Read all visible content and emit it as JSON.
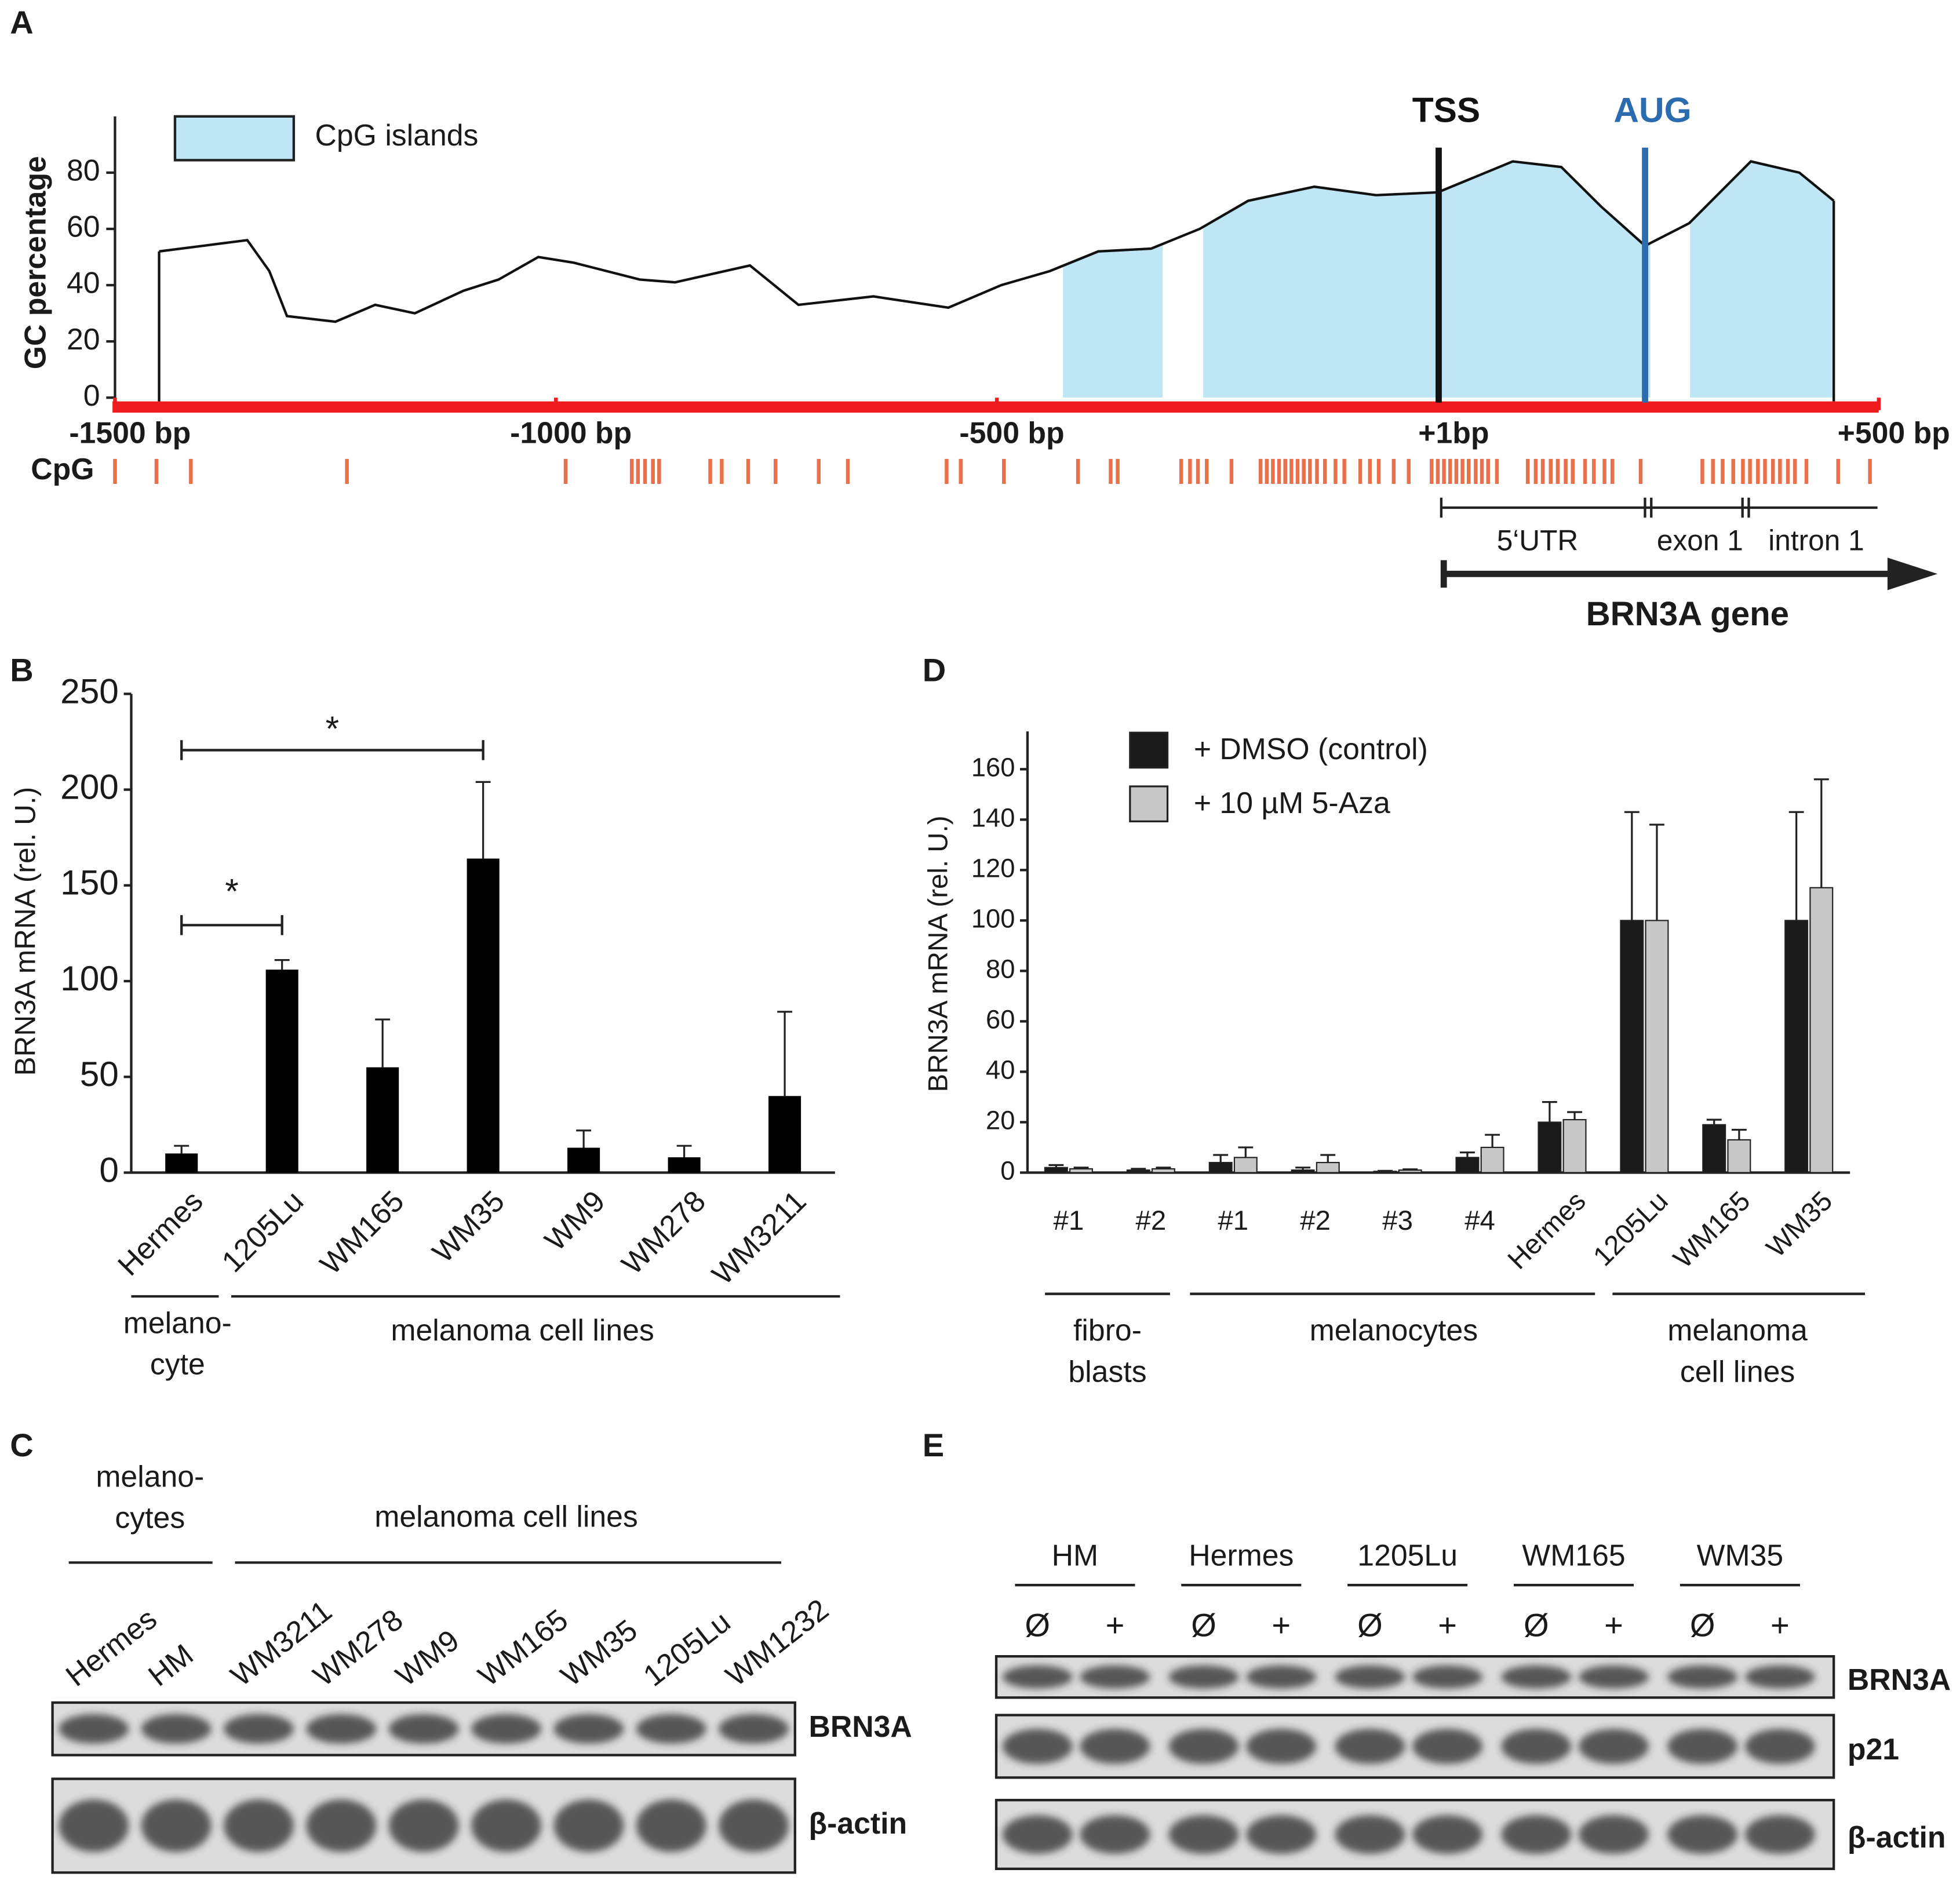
{
  "panel_a": {
    "label": "A",
    "type": "line",
    "ylabel": "GC percentage",
    "legend": "CpG islands",
    "ylim": [
      0,
      100
    ],
    "yticks": [
      0,
      20,
      40,
      60,
      80
    ],
    "xlim": [
      -1500,
      500
    ],
    "xticks": [
      {
        "value": -1500,
        "label": "-1500 bp"
      },
      {
        "value": -1000,
        "label": "-1000 bp"
      },
      {
        "value": -500,
        "label": "-500 bp"
      },
      {
        "value": 1,
        "label": "+1bp"
      },
      {
        "value": 500,
        "label": "+500 bp"
      }
    ],
    "x": [
      -1450,
      -1400,
      -1350,
      -1325,
      -1305,
      -1250,
      -1205,
      -1160,
      -1105,
      -1065,
      -1020,
      -980,
      -905,
      -865,
      -780,
      -725,
      -640,
      -555,
      -495,
      -440,
      -385,
      -325,
      -270,
      -215,
      -140,
      -70,
      0,
      85,
      140,
      185,
      235,
      285,
      355,
      410,
      449
    ],
    "values": [
      52,
      54,
      56,
      45,
      29,
      27,
      33,
      30,
      38,
      42,
      50,
      48,
      42,
      41,
      47,
      33,
      36,
      32,
      40,
      45,
      52,
      53,
      60,
      70,
      75,
      72,
      73,
      84,
      82,
      68,
      54,
      62,
      84,
      80,
      70
    ],
    "cpg_islands": [
      [
        -425,
        -312
      ],
      [
        -266,
        241
      ],
      [
        286,
        449
      ]
    ],
    "markers": [
      {
        "label": "TSS",
        "bp": 1,
        "color": "#111111"
      },
      {
        "label": "AUG",
        "bp": 235,
        "color": "#2b6cb0"
      }
    ],
    "cpg_label": "CpG",
    "cpg_sites": [
      -1500,
      -1453,
      -1414,
      -1237,
      -989,
      -914,
      -907,
      -899,
      -890,
      -883,
      -825,
      -812,
      -782,
      -751,
      -702,
      -669,
      -557,
      -541,
      -492,
      -408,
      -371,
      -363,
      -291,
      -281,
      -272,
      -262,
      -234,
      -201,
      -194,
      -187,
      -180,
      -173,
      -166,
      -159,
      -152,
      -145,
      -137,
      -128,
      -116,
      -106,
      -88,
      -77,
      -67,
      -50,
      -33,
      -7,
      0,
      7,
      14,
      21,
      28,
      35,
      43,
      50,
      57,
      67,
      102,
      111,
      119,
      128,
      136,
      145,
      153,
      167,
      177,
      189,
      198,
      230,
      300,
      312,
      323,
      335,
      346,
      354,
      363,
      371,
      380,
      388,
      397,
      405,
      418,
      454,
      490
    ],
    "regions": [
      "5‘UTR",
      "exon 1",
      "intron 1"
    ],
    "gene": "BRN3A gene"
  },
  "panel_b": {
    "label": "B",
    "type": "bar",
    "ylabel": "BRN3A mRNA (rel. U.)",
    "categories": [
      "Hermes",
      "1205Lu",
      "WM165",
      "WM35",
      "WM9",
      "WM278",
      "WM3211"
    ],
    "values": [
      10,
      106,
      55,
      164,
      13,
      8,
      40
    ],
    "errors": [
      4,
      5,
      25,
      40,
      9,
      6,
      44
    ],
    "color": "#000000",
    "ylim": [
      0,
      250
    ],
    "yticks": [
      0,
      50,
      100,
      150,
      200,
      250
    ],
    "groups": [
      [
        "melano-",
        "cyte"
      ],
      [
        "melanoma cell lines"
      ]
    ],
    "significance": [
      {
        "between": [
          "Hermes",
          "WM35"
        ],
        "label": "*"
      },
      {
        "between": [
          "Hermes",
          "1205Lu"
        ],
        "label": "*"
      }
    ]
  },
  "panel_c": {
    "label": "C",
    "groups": [
      [
        "melano-",
        "cytes"
      ],
      [
        "melanoma cell lines"
      ]
    ],
    "lanes": [
      "Hermes",
      "HM",
      "WM3211",
      "WM278",
      "WM9",
      "WM165",
      "WM35",
      "1205Lu",
      "WM1232"
    ],
    "rows": [
      "BRN3A",
      "β-actin"
    ]
  },
  "panel_d": {
    "label": "D",
    "type": "grouped_bar",
    "ylabel": "BRN3A mRNA (rel. U.)",
    "categories": [
      "#1",
      "#2",
      "#1",
      "#2",
      "#3",
      "#4",
      "Hermes",
      "1205Lu",
      "WM165",
      "WM35"
    ],
    "series": [
      {
        "name": "+ DMSO (control)",
        "color": "#1a1a1a",
        "values": [
          2,
          1,
          4,
          1,
          0.5,
          6,
          20,
          100,
          19,
          100
        ],
        "errors": [
          1,
          0.5,
          3,
          1,
          0.2,
          2,
          8,
          43,
          2,
          43
        ]
      },
      {
        "name": "+ 10 µM 5-Aza",
        "color": "#c8c8c8",
        "values": [
          1.5,
          1.5,
          6,
          4,
          1,
          10,
          21,
          100,
          13,
          113
        ],
        "errors": [
          0.5,
          0.5,
          4,
          3,
          0.3,
          5,
          3,
          38,
          4,
          43
        ]
      }
    ],
    "ylim": [
      0,
      175
    ],
    "yticks": [
      0,
      20,
      40,
      60,
      80,
      100,
      120,
      140,
      160
    ],
    "groups": [
      [
        "fibro-",
        "blasts"
      ],
      [
        "melanocytes"
      ],
      [
        "melanoma",
        "cell lines"
      ]
    ]
  },
  "panel_e": {
    "label": "E",
    "groups": [
      "HM",
      "Hermes",
      "1205Lu",
      "WM165",
      "WM35"
    ],
    "treatments": [
      "Ø",
      "+"
    ],
    "rows": [
      "BRN3A",
      "p21",
      "β-actin"
    ]
  }
}
